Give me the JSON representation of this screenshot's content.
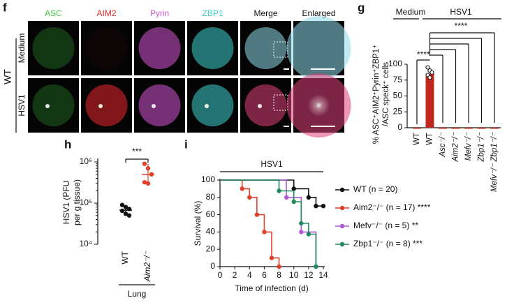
{
  "panel_f": {
    "label": "f",
    "columns": [
      {
        "name": "ASC",
        "color": "#3ecb3e"
      },
      {
        "name": "AIM2",
        "color": "#e8262b"
      },
      {
        "name": "Pyrin",
        "color": "#d455d4"
      },
      {
        "name": "ZBP1",
        "color": "#3fcfcf"
      },
      {
        "name": "Merge",
        "color": "#ffffff"
      },
      {
        "name": "Enlarged",
        "color": "#ffffff"
      }
    ],
    "rows": [
      "Medium",
      "HSV1"
    ],
    "genotype": "WT"
  },
  "chart_data": [
    {
      "type": "bar",
      "label": "g",
      "groups": [
        "Medium",
        "HSV1"
      ],
      "ylabel": [
        "% ASC⁺AIM2⁺Pyrin⁺ZBP1⁺",
        "/ASC speck⁺ cells"
      ],
      "categories": [
        "WT",
        "WT",
        "Asc⁻/⁻",
        "Aim2⁻/⁻",
        "Mefv⁻/⁻",
        "Zbp1⁻/⁻",
        "Mefv⁻/⁻ Zbp1⁻/⁻"
      ],
      "values": [
        0,
        85,
        0,
        0,
        0,
        0,
        0
      ],
      "points": [
        95,
        90,
        87,
        83,
        79
      ],
      "color": "#c0281e",
      "ylim": [
        0,
        100
      ],
      "yticks": [
        0,
        25,
        50,
        75,
        100
      ],
      "annotations": [
        "****",
        "****"
      ]
    },
    {
      "type": "scatter",
      "label": "h",
      "ylabel": [
        "HSV1 (PFU",
        "per g tissue)"
      ],
      "categories": [
        "WT",
        "Aim2⁻/⁻"
      ],
      "series": [
        {
          "name": "WT",
          "color": "#111111",
          "values": [
            90000,
            80000,
            72000,
            65000,
            55000,
            50000
          ]
        },
        {
          "name": "Aim2⁻/⁻",
          "color": "#e0412a",
          "values": [
            900000,
            700000,
            500000,
            320000,
            300000
          ]
        }
      ],
      "log_scale": true,
      "ylim": [
        10000,
        1000000
      ],
      "yticks": [
        {
          "value": 10000,
          "label": "10⁴"
        },
        {
          "value": 100000,
          "label": "10⁵"
        },
        {
          "value": 1000000,
          "label": "10⁶"
        }
      ],
      "annotation": "***",
      "group": "Lung"
    },
    {
      "type": "line",
      "label": "i",
      "condition": "HSV1",
      "xlabel": "Time of infection (d)",
      "ylabel": "Survival (%)",
      "series": [
        {
          "name": "WT (n = 20)",
          "color": "#111111",
          "x": [
            0,
            10,
            12,
            13,
            14
          ],
          "values": [
            100,
            90,
            80,
            70,
            70
          ]
        },
        {
          "name": "Aim2⁻/⁻ (n = 17) ****",
          "color": "#e0412a",
          "x": [
            0,
            3,
            4,
            5,
            6,
            7,
            8
          ],
          "values": [
            100,
            90,
            80,
            60,
            40,
            10,
            0
          ]
        },
        {
          "name": "Mefv⁻/⁻ (n = 5) **",
          "color": "#b05ad8",
          "x": [
            0,
            9,
            11,
            13
          ],
          "values": [
            100,
            80,
            40,
            0
          ]
        },
        {
          "name": "Zbp1⁻/⁻ (n = 8) ***",
          "color": "#1e8a5a",
          "x": [
            0,
            8,
            10,
            11,
            12,
            13
          ],
          "values": [
            100,
            87.5,
            75,
            50,
            37.5,
            0
          ]
        }
      ],
      "xlim": [
        0,
        14
      ],
      "xticks": [
        0,
        2,
        4,
        6,
        8,
        10,
        12,
        14
      ],
      "ylim": [
        0,
        100
      ],
      "yticks": [
        0,
        20,
        40,
        60,
        80,
        100
      ]
    }
  ]
}
